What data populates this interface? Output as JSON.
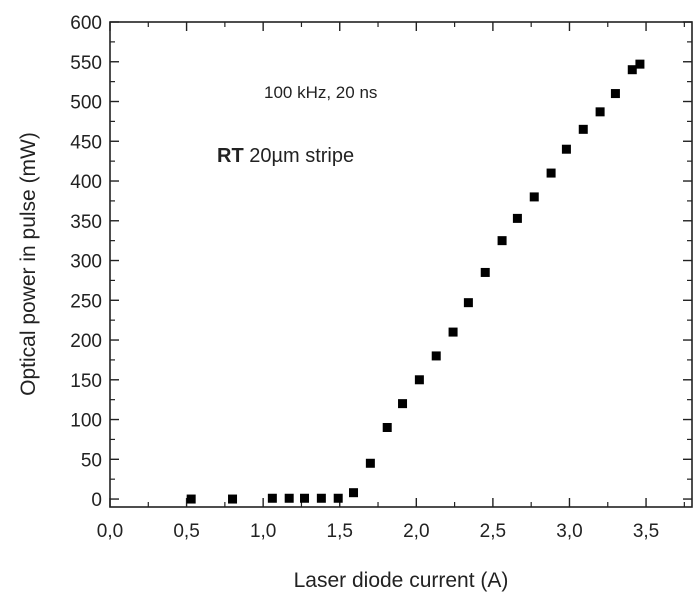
{
  "chart_data": {
    "type": "scatter",
    "title": "",
    "xlabel": "Laser diode current (A)",
    "ylabel": "Optical power in pulse (mW)",
    "xlim": [
      0.0,
      3.8
    ],
    "ylim": [
      -10,
      600
    ],
    "x_ticks": [
      0.0,
      0.5,
      1.0,
      1.5,
      2.0,
      2.5,
      3.0,
      3.5
    ],
    "x_tick_labels": [
      "0,0",
      "0,5",
      "1,0",
      "1,5",
      "2,0",
      "2,5",
      "3,0",
      "3,5"
    ],
    "y_ticks": [
      0,
      50,
      100,
      150,
      200,
      250,
      300,
      350,
      400,
      450,
      500,
      550,
      600
    ],
    "y_tick_labels": [
      "0",
      "50",
      "100",
      "150",
      "200",
      "250",
      "300",
      "350",
      "400",
      "450",
      "500",
      "550",
      "600"
    ],
    "grid": false,
    "legend": "none",
    "marker_color": "#000000",
    "series": [
      {
        "x": [
          0.53,
          0.8,
          1.06,
          1.17,
          1.27,
          1.38,
          1.49,
          1.59,
          1.7,
          1.81,
          1.91,
          2.02,
          2.13,
          2.24,
          2.34,
          2.45,
          2.56,
          2.66,
          2.77,
          2.88,
          2.98,
          3.09,
          3.2,
          3.3,
          3.41,
          3.46
        ],
        "y": [
          0,
          0,
          1,
          1,
          1,
          1,
          1,
          8,
          45,
          90,
          120,
          150,
          180,
          210,
          247,
          285,
          325,
          353,
          380,
          410,
          440,
          465,
          487,
          510,
          540,
          547
        ]
      }
    ],
    "annotations": [
      {
        "text": "100 kHz, 20 ns"
      },
      {
        "bold": "RT",
        "text": " 20µm stripe"
      }
    ]
  }
}
